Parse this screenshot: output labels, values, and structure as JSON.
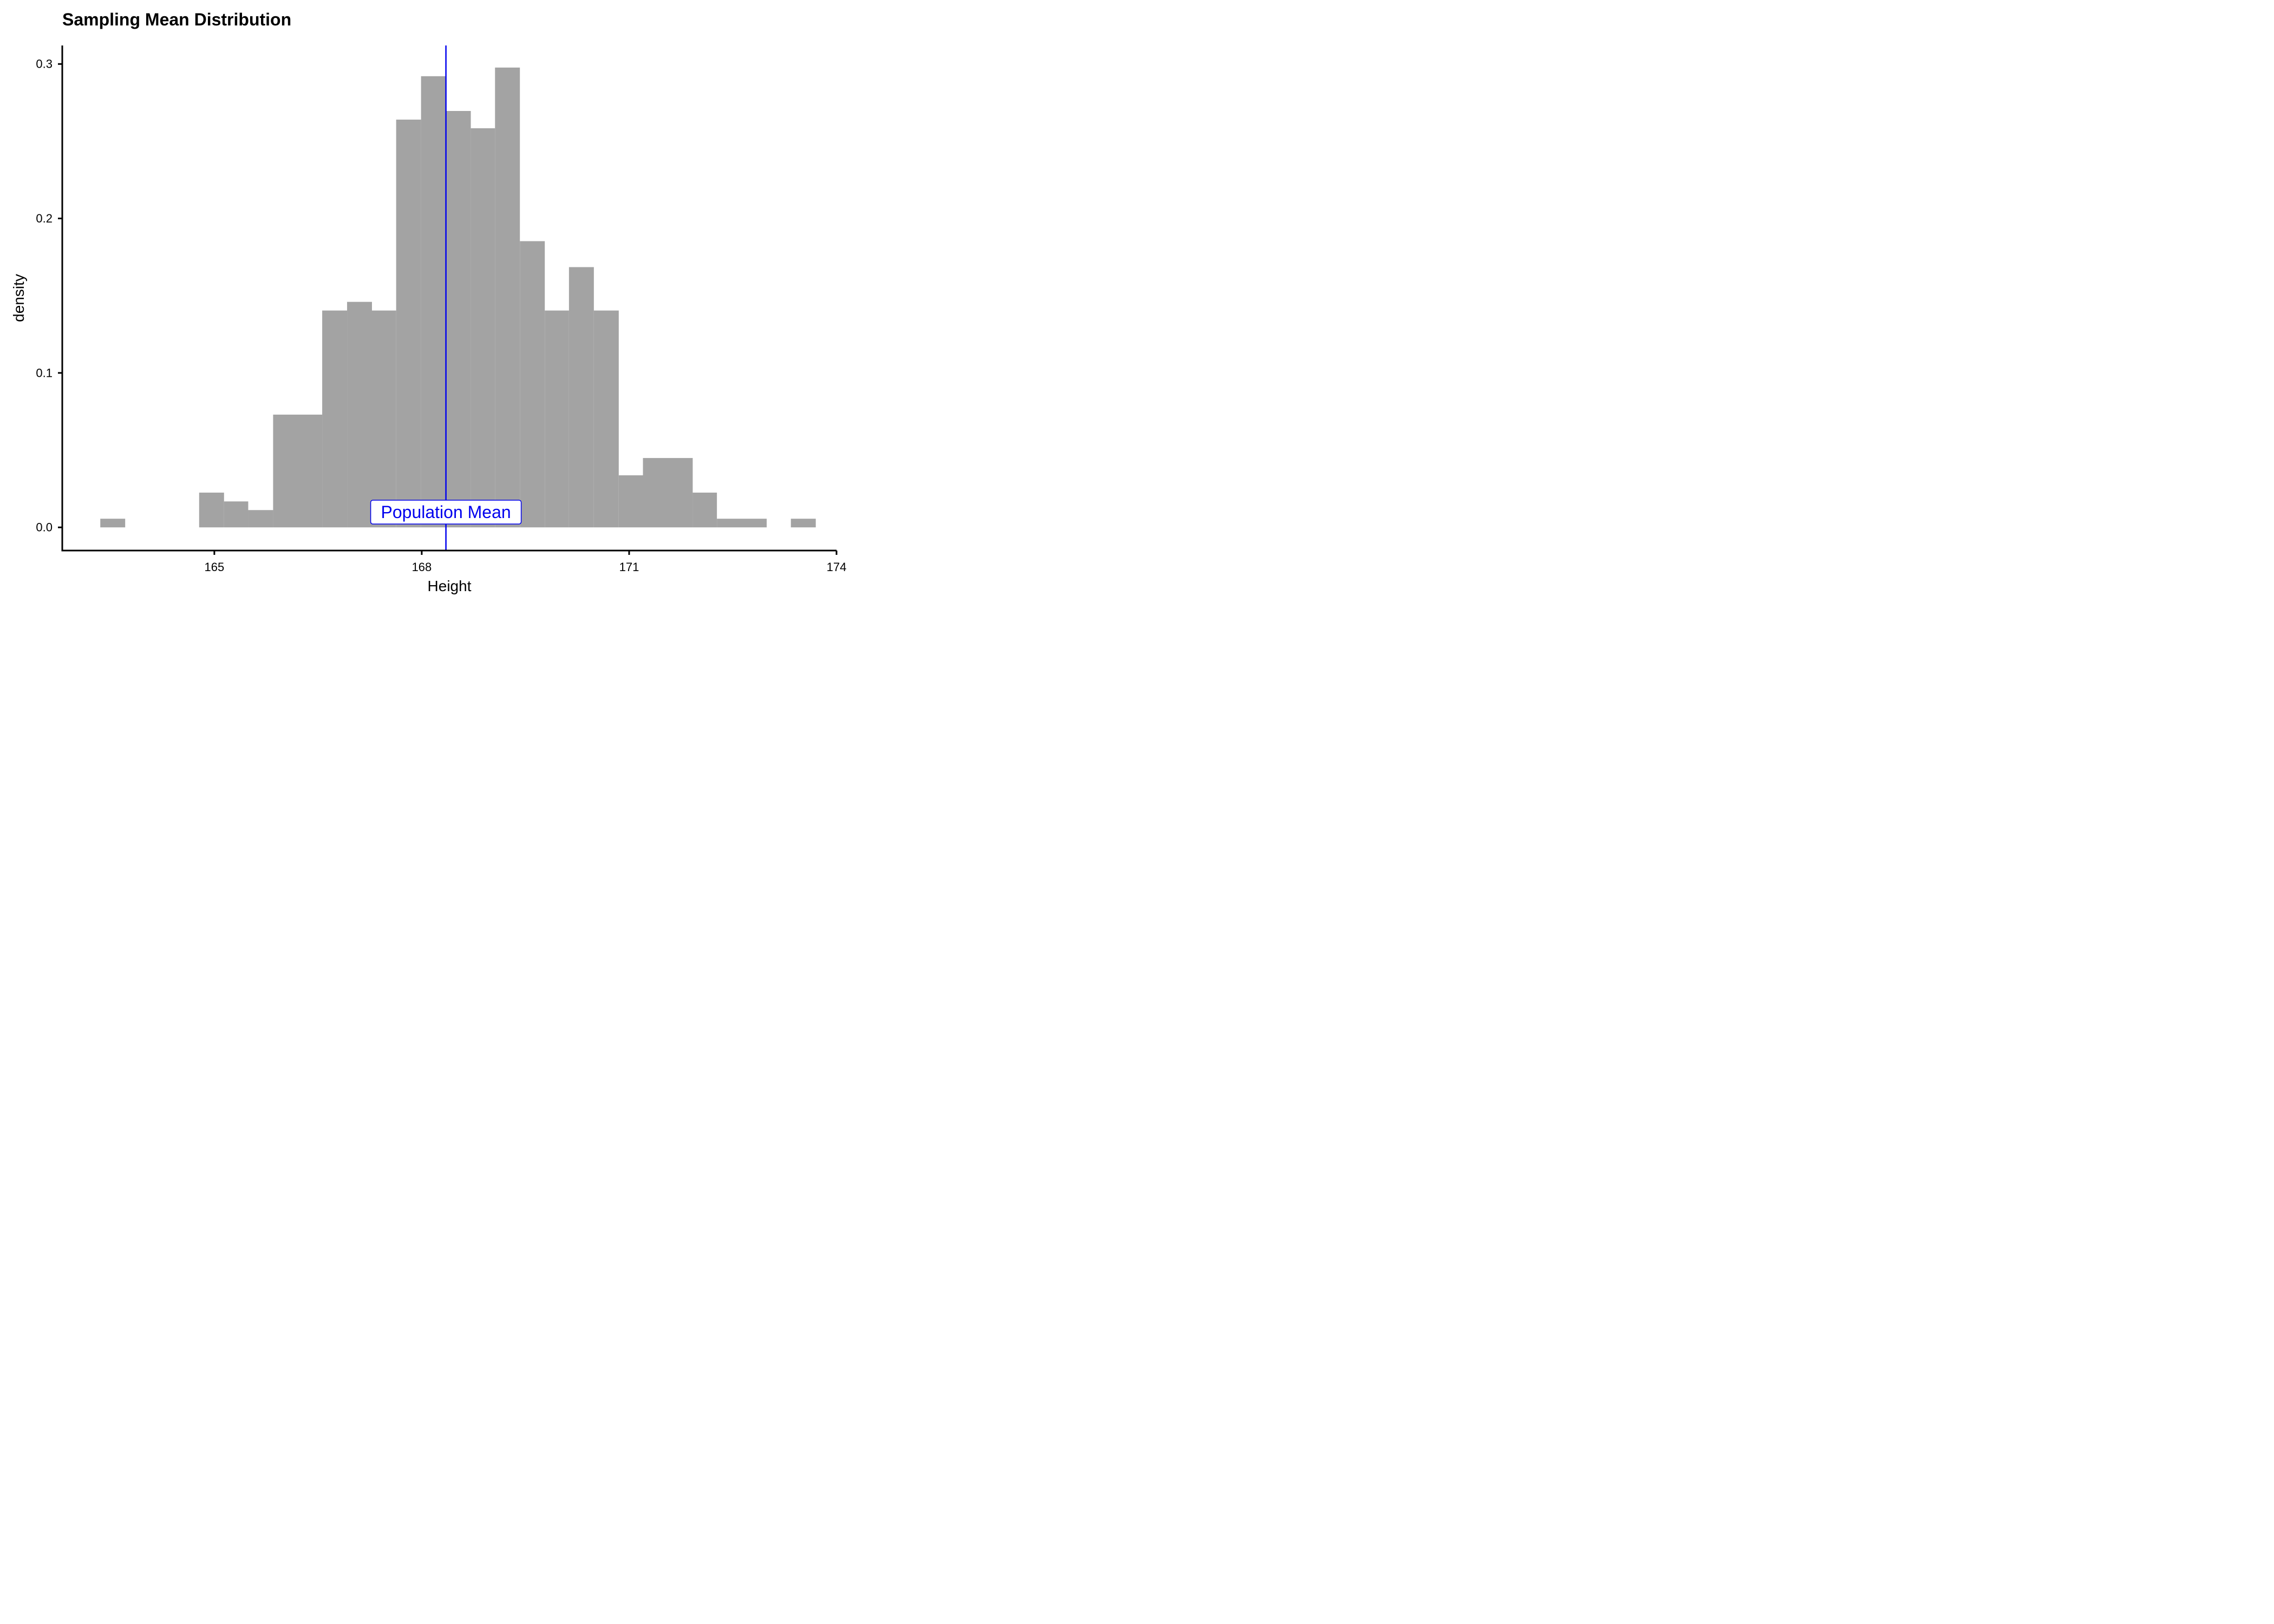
{
  "chart_data": {
    "type": "bar",
    "title": "Sampling Mean Distribution",
    "xlabel": "Height",
    "ylabel": "density",
    "xlim": [
      162.8,
      174
    ],
    "ylim": [
      -0.015,
      0.312
    ],
    "x_ticks": [
      165,
      168,
      171,
      174
    ],
    "y_ticks": [
      0.0,
      0.1,
      0.2,
      0.3
    ],
    "y_tick_labels": [
      "0.0",
      "0.1",
      "0.2",
      "0.3"
    ],
    "bin_width": 0.357,
    "bins": [
      {
        "x0": 163.35,
        "x1": 163.71,
        "density": 0.0056
      },
      {
        "x0": 164.78,
        "x1": 165.14,
        "density": 0.0225
      },
      {
        "x0": 165.14,
        "x1": 165.49,
        "density": 0.0168
      },
      {
        "x0": 165.49,
        "x1": 165.85,
        "density": 0.0112
      },
      {
        "x0": 165.85,
        "x1": 166.56,
        "density": 0.073
      },
      {
        "x0": 166.56,
        "x1": 166.92,
        "density": 0.1404
      },
      {
        "x0": 166.92,
        "x1": 167.28,
        "density": 0.146
      },
      {
        "x0": 167.28,
        "x1": 167.63,
        "density": 0.1404
      },
      {
        "x0": 167.63,
        "x1": 167.99,
        "density": 0.264
      },
      {
        "x0": 167.99,
        "x1": 168.35,
        "density": 0.2921
      },
      {
        "x0": 168.35,
        "x1": 168.71,
        "density": 0.2696
      },
      {
        "x0": 168.71,
        "x1": 169.06,
        "density": 0.2584
      },
      {
        "x0": 169.06,
        "x1": 169.42,
        "density": 0.2977
      },
      {
        "x0": 169.42,
        "x1": 169.78,
        "density": 0.1853
      },
      {
        "x0": 169.78,
        "x1": 170.13,
        "density": 0.1404
      },
      {
        "x0": 170.13,
        "x1": 170.49,
        "density": 0.1685
      },
      {
        "x0": 170.49,
        "x1": 170.85,
        "density": 0.1404
      },
      {
        "x0": 170.85,
        "x1": 171.2,
        "density": 0.0337
      },
      {
        "x0": 171.2,
        "x1": 171.92,
        "density": 0.0449
      },
      {
        "x0": 171.92,
        "x1": 172.27,
        "density": 0.0225
      },
      {
        "x0": 172.27,
        "x1": 172.99,
        "density": 0.0056
      },
      {
        "x0": 173.34,
        "x1": 173.7,
        "density": 0.0056
      }
    ],
    "bar_color": "#a3a3a3",
    "population_mean": 168.35,
    "population_mean_label": "Population Mean",
    "mean_line_color": "#0000ee",
    "grid": false,
    "legend": "none"
  }
}
